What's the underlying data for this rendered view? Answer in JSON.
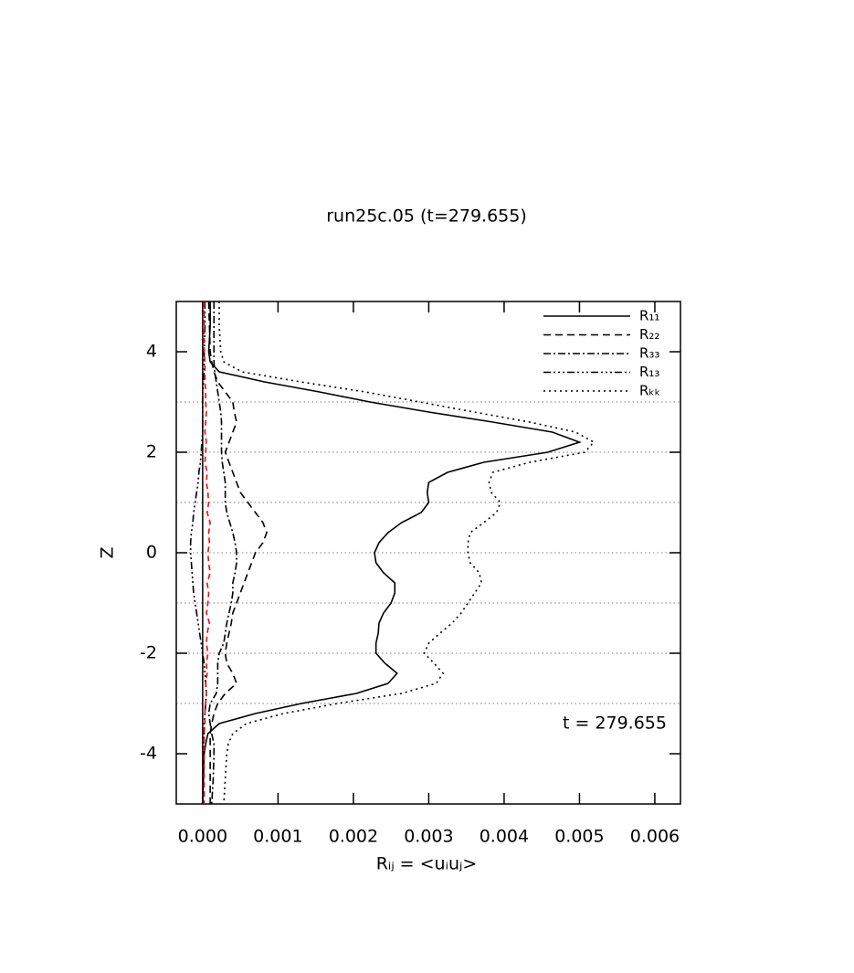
{
  "chart_data": {
    "type": "line",
    "title": "run25c.05 (t=279.655)",
    "xlabel": "Rᵢⱼ = <uᵢuⱼ>",
    "ylabel": "Z",
    "annotation": "t = 279.655",
    "xlim": [
      -0.00035,
      0.00634
    ],
    "ylim": [
      -5,
      5
    ],
    "xticks": [
      {
        "value": 0,
        "label": "0.000"
      },
      {
        "value": 0.001,
        "label": "0.001"
      },
      {
        "value": 0.002,
        "label": "0.002"
      },
      {
        "value": 0.003,
        "label": "0.003"
      },
      {
        "value": 0.004,
        "label": "0.004"
      },
      {
        "value": 0.005,
        "label": "0.005"
      },
      {
        "value": 0.006,
        "label": "0.006"
      }
    ],
    "yticks": [
      -4,
      -2,
      0,
      2,
      4
    ],
    "hlines": [
      3,
      2,
      1,
      0,
      -1,
      -2,
      -3
    ],
    "zero_line": true,
    "legend": "top-right",
    "z": [
      5,
      4.5,
      4,
      3.8,
      3.6,
      3.4,
      3.2,
      3,
      2.8,
      2.6,
      2.4,
      2.2,
      2,
      1.8,
      1.6,
      1.4,
      1.2,
      1,
      0.8,
      0.6,
      0.4,
      0.2,
      0,
      -0.2,
      -0.4,
      -0.6,
      -0.8,
      -1,
      -1.2,
      -1.4,
      -1.6,
      -1.8,
      -2,
      -2.2,
      -2.4,
      -2.6,
      -2.8,
      -3,
      -3.2,
      -3.4,
      -3.6,
      -3.8,
      -4,
      -4.5,
      -5
    ],
    "series": [
      {
        "name": "R₁₁",
        "color": "#000000",
        "dash": "none",
        "values": [
          0.0001,
          0.0001,
          8e-05,
          0.0001,
          0.00022,
          0.00082,
          0.00155,
          0.00222,
          0.003,
          0.00385,
          0.00464,
          0.005,
          0.00458,
          0.00373,
          0.00325,
          0.003,
          0.00298,
          0.003,
          0.0029,
          0.00264,
          0.00246,
          0.00234,
          0.00228,
          0.0023,
          0.0024,
          0.00255,
          0.00255,
          0.0025,
          0.0024,
          0.00234,
          0.00233,
          0.0023,
          0.0023,
          0.00242,
          0.00258,
          0.00246,
          0.00204,
          0.00131,
          0.0007,
          0.00022,
          7e-05,
          4e-05,
          2e-05,
          1e-05,
          0
        ]
      },
      {
        "name": "R₂₂",
        "color": "#000000",
        "dash": "8,5",
        "values": [
          8e-05,
          9e-05,
          0.0001,
          0.00012,
          0.00015,
          0.0002,
          0.0003,
          0.0004,
          0.00042,
          0.00045,
          0.0004,
          0.00035,
          0.0003,
          0.00035,
          0.0004,
          0.00045,
          0.0005,
          0.0006,
          0.0007,
          0.0008,
          0.00085,
          0.0008,
          0.0007,
          0.00065,
          0.0006,
          0.00055,
          0.0005,
          0.00045,
          0.0004,
          0.00038,
          0.00035,
          0.00032,
          0.0003,
          0.00032,
          0.0004,
          0.00045,
          0.0003,
          0.0002,
          0.00015,
          0.00012,
          0.0001,
          0.0001,
          0.0001,
          0.0001,
          0.0001
        ]
      },
      {
        "name": "R₃₃",
        "color": "#000000",
        "dash": "8,3,2,3",
        "values": [
          0.00015,
          0.00015,
          0.00015,
          0.00015,
          0.00016,
          0.00018,
          0.0002,
          0.00022,
          0.00024,
          0.00025,
          0.00025,
          0.00025,
          0.00025,
          0.00026,
          0.00028,
          0.0003,
          0.0003,
          0.0003,
          0.00032,
          0.00036,
          0.0004,
          0.00043,
          0.00045,
          0.00045,
          0.00043,
          0.0004,
          0.0004,
          0.00038,
          0.00035,
          0.00032,
          0.0003,
          0.00028,
          0.00022,
          0.0002,
          0.0002,
          0.0002,
          0.00018,
          0.0001,
          8e-05,
          0.0001,
          0.00012,
          0.00015,
          0.00015,
          0.00014,
          0.00012
        ]
      },
      {
        "name": "R₁₃",
        "color": "#000000",
        "dash": "8,3,2,3,2,3,2,3",
        "values": [
          3e-05,
          3e-05,
          2e-05,
          2e-05,
          2e-05,
          1e-05,
          0,
          0,
          0,
          0,
          0,
          -1e-05,
          -2e-05,
          -3e-05,
          -5e-05,
          -6e-05,
          -8e-05,
          -0.0001,
          -0.00012,
          -0.00013,
          -0.00015,
          -0.00016,
          -0.00016,
          -0.00015,
          -0.00014,
          -0.00013,
          -0.00012,
          -0.0001,
          -8e-05,
          -6e-05,
          -4e-05,
          -2e-05,
          0,
          2e-05,
          3e-05,
          4e-05,
          5e-05,
          4e-05,
          3e-05,
          2e-05,
          2e-05,
          1e-05,
          1e-05,
          1e-05,
          0
        ]
      },
      {
        "name": "Rₖₖ",
        "color": "#000000",
        "dash": "2,4",
        "values": [
          0.00022,
          0.00022,
          0.00024,
          0.00028,
          0.00052,
          0.0013,
          0.00216,
          0.00288,
          0.0036,
          0.00434,
          0.00495,
          0.00519,
          0.00507,
          0.00434,
          0.00385,
          0.0038,
          0.00383,
          0.00395,
          0.0039,
          0.00373,
          0.00355,
          0.00352,
          0.00352,
          0.00355,
          0.00367,
          0.0037,
          0.00361,
          0.00352,
          0.00343,
          0.00331,
          0.00315,
          0.003,
          0.00294,
          0.00307,
          0.00319,
          0.0031,
          0.00264,
          0.00179,
          0.00107,
          0.00058,
          0.0004,
          0.00034,
          0.00032,
          0.0003,
          0.00028
        ]
      },
      {
        "color": "#ff0000",
        "dash": "6,4",
        "values": [
          2e-05,
          2e-05,
          2e-05,
          3e-05,
          3e-05,
          3e-05,
          4e-05,
          4e-05,
          5e-05,
          4e-05,
          3e-05,
          5e-05,
          4e-05,
          3e-05,
          6e-05,
          5e-05,
          7e-05,
          8e-05,
          6e-05,
          0.0001,
          8e-05,
          9e-05,
          7e-05,
          8e-05,
          0.0001,
          6e-05,
          8e-05,
          7e-05,
          5e-05,
          9e-05,
          6e-05,
          5e-05,
          7e-05,
          5e-05,
          6e-05,
          4e-05,
          5e-05,
          4e-05,
          3e-05,
          3e-05,
          2e-05,
          2e-05,
          2e-05,
          2e-05,
          2e-05
        ]
      }
    ]
  }
}
